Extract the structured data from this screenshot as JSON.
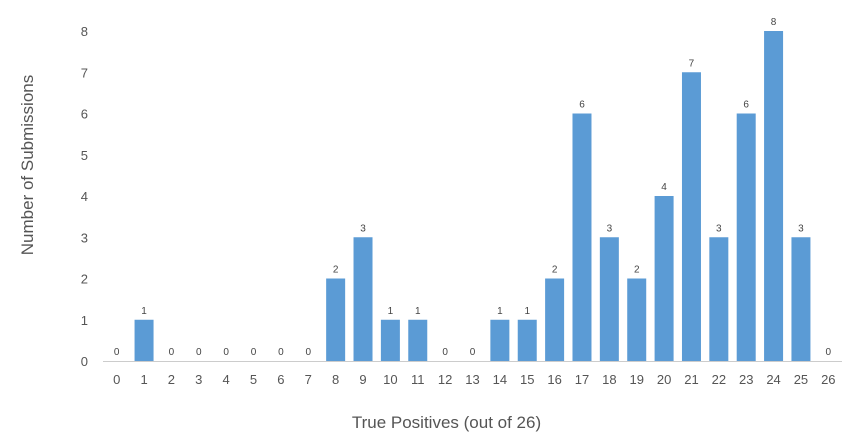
{
  "chart_data": {
    "type": "bar",
    "title": "",
    "xlabel": "True Positives (out of 26)",
    "ylabel": "Number of Submissions",
    "categories": [
      "0",
      "1",
      "2",
      "3",
      "4",
      "5",
      "6",
      "7",
      "8",
      "9",
      "10",
      "11",
      "12",
      "13",
      "14",
      "15",
      "16",
      "17",
      "18",
      "19",
      "20",
      "21",
      "22",
      "23",
      "24",
      "25",
      "26"
    ],
    "values": [
      0,
      1,
      0,
      0,
      0,
      0,
      0,
      0,
      2,
      3,
      1,
      1,
      0,
      0,
      1,
      1,
      2,
      6,
      3,
      2,
      4,
      7,
      3,
      6,
      8,
      3,
      0
    ],
    "ylim": [
      0,
      8
    ],
    "yticks": [
      0,
      1,
      2,
      3,
      4,
      5,
      6,
      7,
      8
    ],
    "grid": false,
    "legend": "none",
    "bar_color": "#5b9bd5",
    "data_labels": true
  }
}
